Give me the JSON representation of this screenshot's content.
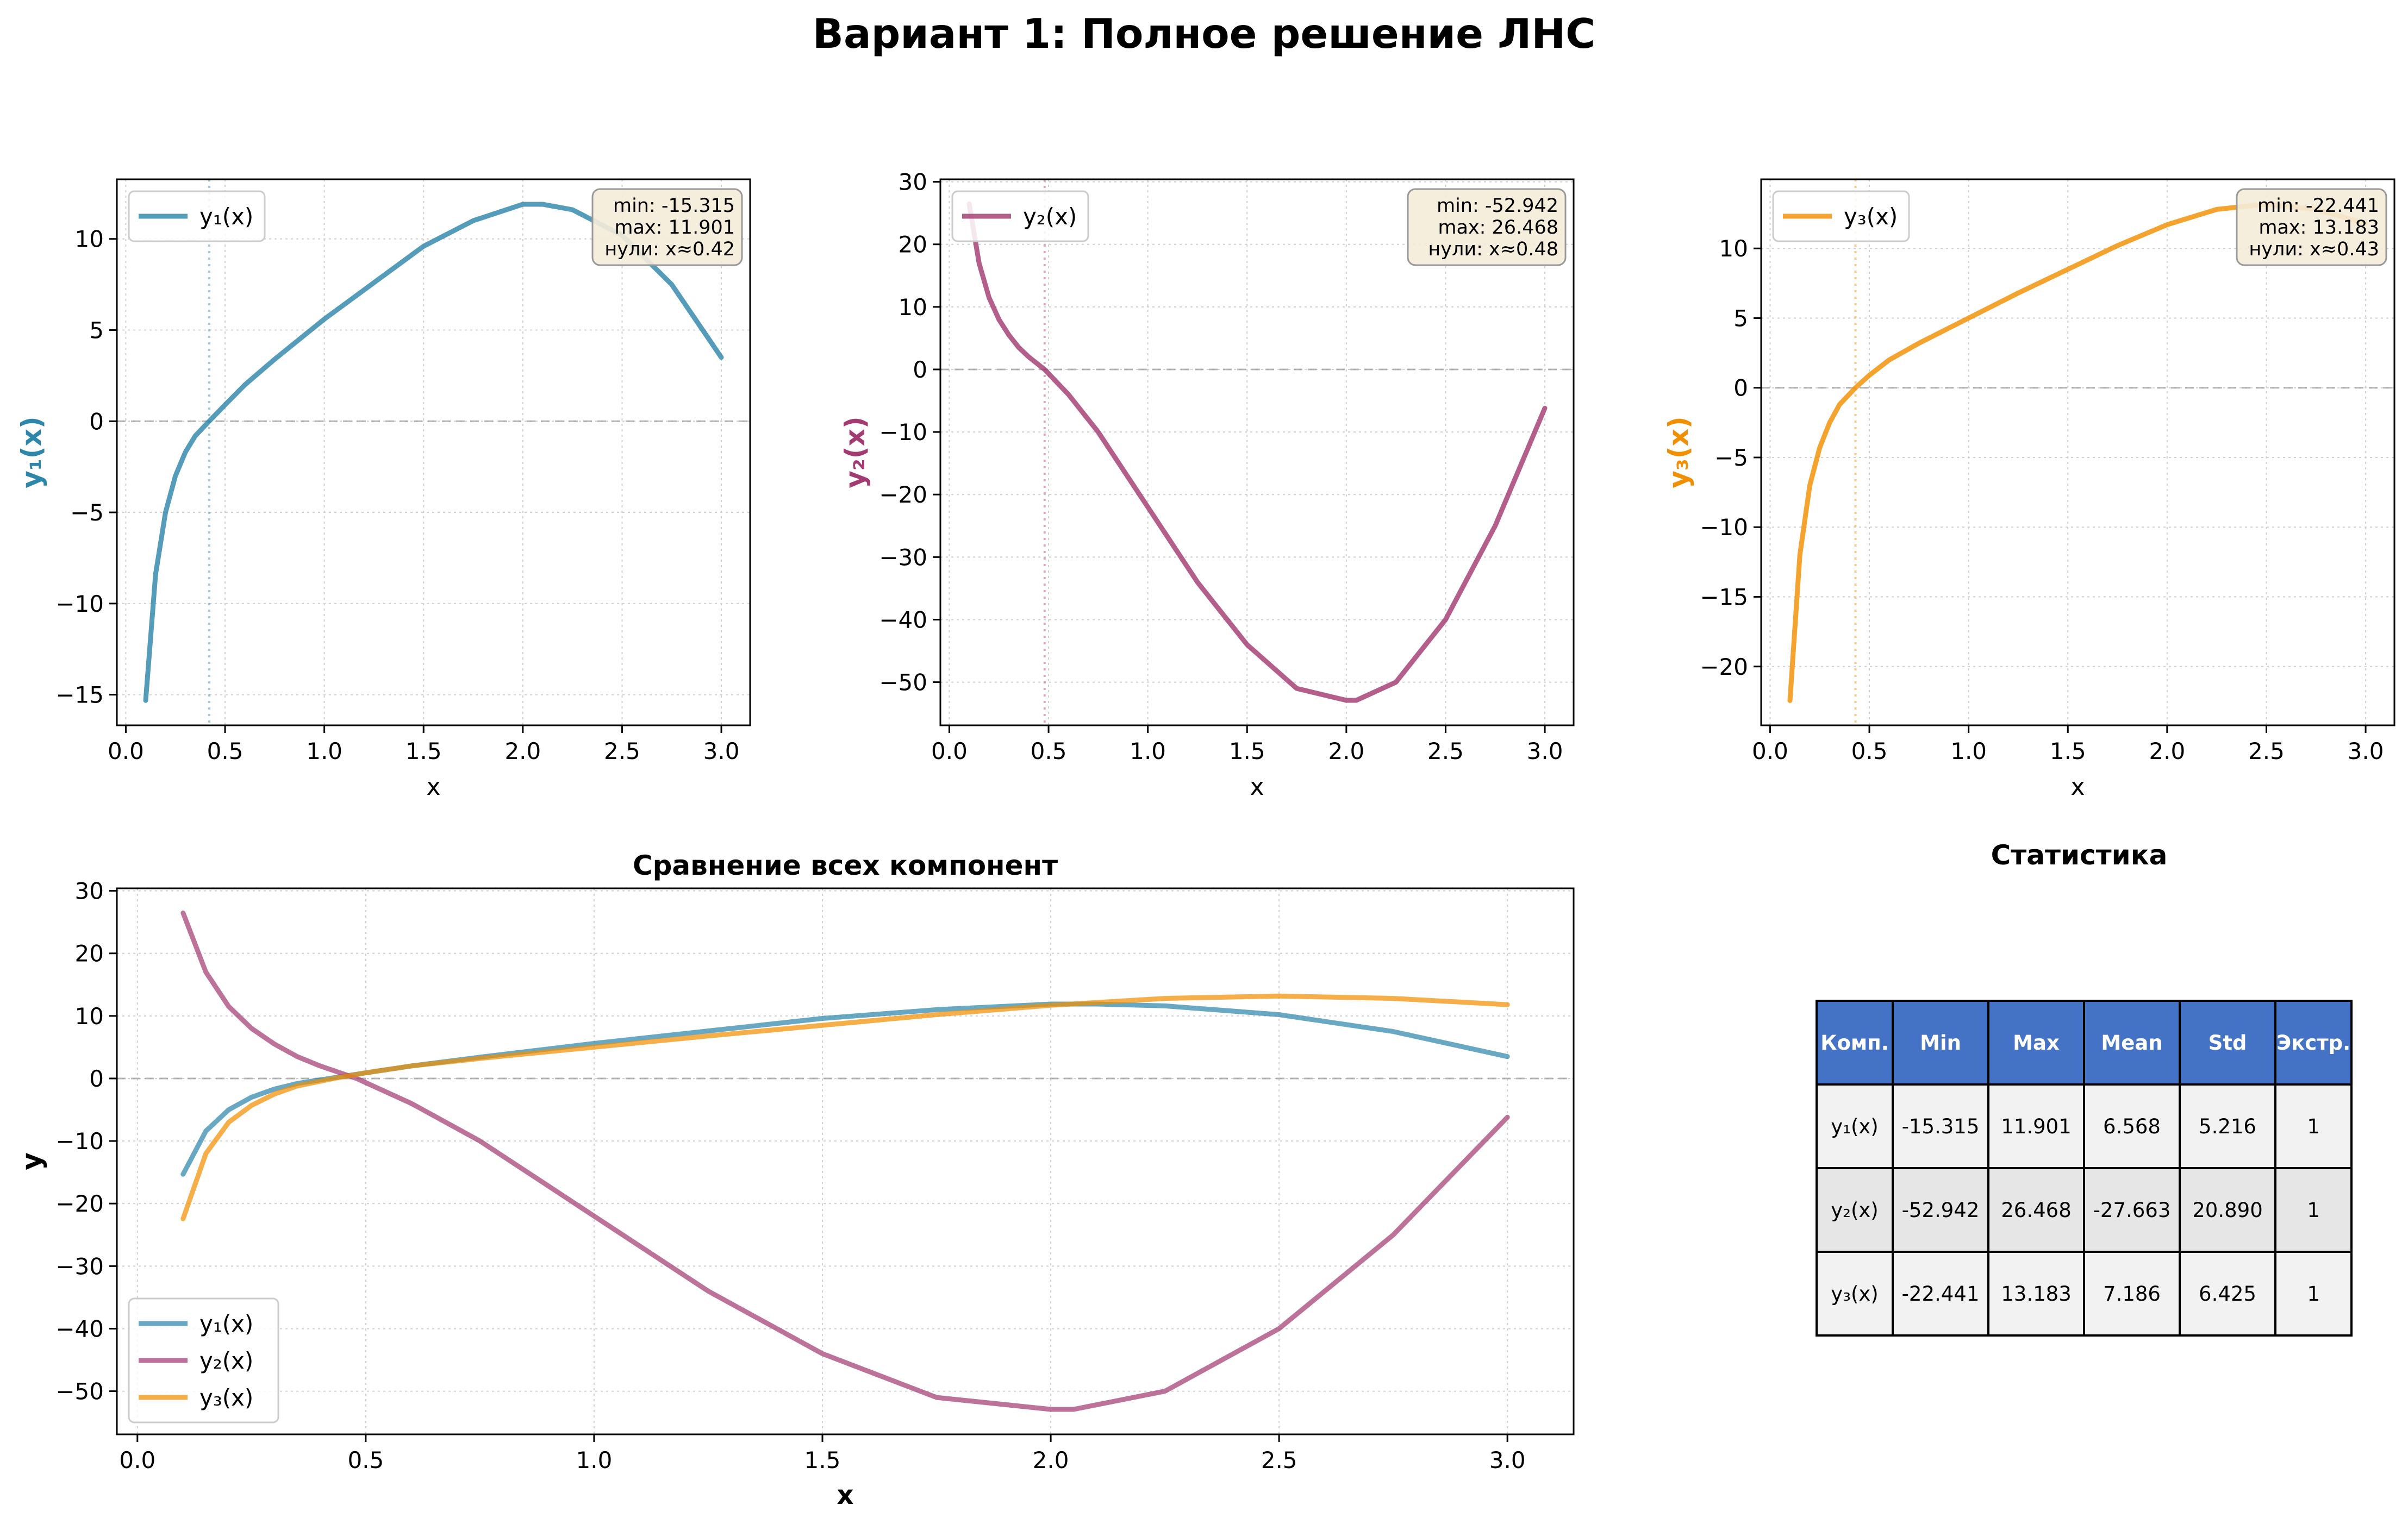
{
  "suptitle": "Вариант 1: Полное решение ЛНС",
  "chart_data": [
    {
      "type": "line",
      "xlabel": "x",
      "ylabel": "y₁(x)",
      "xlim": [
        -0.045,
        3.145
      ],
      "ylim": [
        -16.68,
        13.27
      ],
      "xticks": [
        0.0,
        0.5,
        1.0,
        1.5,
        2.0,
        2.5,
        3.0
      ],
      "yticks": [
        -15,
        -10,
        -5,
        0,
        5,
        10
      ],
      "grid": true,
      "legend": "top-left",
      "zero_crossing": 0.42,
      "annotation": [
        "min: -15.315",
        "max: 11.901",
        "нули: x≈0.42"
      ],
      "series": [
        {
          "name": "y₁(x)",
          "color": "#2E86AB",
          "x": [
            0.1,
            0.15,
            0.2,
            0.25,
            0.3,
            0.35,
            0.42,
            0.5,
            0.6,
            0.75,
            1.0,
            1.25,
            1.5,
            1.75,
            2.0,
            2.1,
            2.25,
            2.5,
            2.75,
            3.0
          ],
          "y": [
            -15.315,
            -8.4,
            -5.0,
            -3.0,
            -1.7,
            -0.8,
            0.0,
            0.9,
            2.0,
            3.4,
            5.6,
            7.6,
            9.6,
            11.0,
            11.9,
            11.9,
            11.6,
            10.2,
            7.5,
            3.5
          ]
        }
      ]
    },
    {
      "type": "line",
      "xlabel": "x",
      "ylabel": "y₂(x)",
      "xlim": [
        -0.045,
        3.145
      ],
      "ylim": [
        -56.9,
        30.4
      ],
      "xticks": [
        0.0,
        0.5,
        1.0,
        1.5,
        2.0,
        2.5,
        3.0
      ],
      "yticks": [
        -50,
        -40,
        -30,
        -20,
        -10,
        0,
        10,
        20,
        30
      ],
      "grid": true,
      "legend": "top-left",
      "zero_crossing": 0.48,
      "annotation": [
        "min: -52.942",
        "max: 26.468",
        "нули: x≈0.48"
      ],
      "series": [
        {
          "name": "y₂(x)",
          "color": "#A23B72",
          "x": [
            0.1,
            0.15,
            0.2,
            0.25,
            0.3,
            0.35,
            0.4,
            0.48,
            0.6,
            0.75,
            1.0,
            1.25,
            1.5,
            1.75,
            2.0,
            2.05,
            2.25,
            2.5,
            2.75,
            3.0
          ],
          "y": [
            26.468,
            17.0,
            11.5,
            8.0,
            5.5,
            3.5,
            2.0,
            0.0,
            -4.0,
            -10.0,
            -22.0,
            -34.0,
            -44.0,
            -51.0,
            -52.9,
            -52.9,
            -50.0,
            -40.0,
            -25.0,
            -6.2
          ]
        }
      ]
    },
    {
      "type": "line",
      "xlabel": "x",
      "ylabel": "y₃(x)",
      "xlim": [
        -0.045,
        3.145
      ],
      "ylim": [
        -24.22,
        14.96
      ],
      "xticks": [
        0.0,
        0.5,
        1.0,
        1.5,
        2.0,
        2.5,
        3.0
      ],
      "yticks": [
        -20,
        -15,
        -10,
        -5,
        0,
        5,
        10
      ],
      "grid": true,
      "legend": "top-left",
      "zero_crossing": 0.43,
      "annotation": [
        "min: -22.441",
        "max: 13.183",
        "нули: x≈0.43"
      ],
      "series": [
        {
          "name": "y₃(x)",
          "color": "#F18F01",
          "x": [
            0.1,
            0.15,
            0.2,
            0.25,
            0.3,
            0.35,
            0.43,
            0.5,
            0.6,
            0.75,
            1.0,
            1.25,
            1.5,
            1.75,
            2.0,
            2.25,
            2.5,
            2.75,
            3.0
          ],
          "y": [
            -22.441,
            -12.0,
            -7.0,
            -4.3,
            -2.5,
            -1.2,
            0.0,
            0.9,
            2.0,
            3.2,
            5.0,
            6.8,
            8.5,
            10.2,
            11.7,
            12.8,
            13.18,
            12.8,
            11.8
          ]
        }
      ]
    },
    {
      "type": "line",
      "title": "Сравнение всех компонент",
      "xlabel": "x",
      "ylabel": "y",
      "xlim": [
        -0.045,
        3.145
      ],
      "ylim": [
        -56.9,
        30.4
      ],
      "xticks": [
        0.0,
        0.5,
        1.0,
        1.5,
        2.0,
        2.5,
        3.0
      ],
      "yticks": [
        -50,
        -40,
        -30,
        -20,
        -10,
        0,
        10,
        20,
        30
      ],
      "grid": true,
      "legend": "bottom-left",
      "series": [
        {
          "name": "y₁(x)",
          "color": "#2E86AB",
          "x": [
            0.1,
            0.15,
            0.2,
            0.25,
            0.3,
            0.35,
            0.42,
            0.5,
            0.6,
            0.75,
            1.0,
            1.25,
            1.5,
            1.75,
            2.0,
            2.1,
            2.25,
            2.5,
            2.75,
            3.0
          ],
          "y": [
            -15.315,
            -8.4,
            -5.0,
            -3.0,
            -1.7,
            -0.8,
            0.0,
            0.9,
            2.0,
            3.4,
            5.6,
            7.6,
            9.6,
            11.0,
            11.9,
            11.9,
            11.6,
            10.2,
            7.5,
            3.5
          ]
        },
        {
          "name": "y₂(x)",
          "color": "#A23B72",
          "x": [
            0.1,
            0.15,
            0.2,
            0.25,
            0.3,
            0.35,
            0.4,
            0.48,
            0.6,
            0.75,
            1.0,
            1.25,
            1.5,
            1.75,
            2.0,
            2.05,
            2.25,
            2.5,
            2.75,
            3.0
          ],
          "y": [
            26.468,
            17.0,
            11.5,
            8.0,
            5.5,
            3.5,
            2.0,
            0.0,
            -4.0,
            -10.0,
            -22.0,
            -34.0,
            -44.0,
            -51.0,
            -52.9,
            -52.9,
            -50.0,
            -40.0,
            -25.0,
            -6.2
          ]
        },
        {
          "name": "y₃(x)",
          "color": "#F18F01",
          "x": [
            0.1,
            0.15,
            0.2,
            0.25,
            0.3,
            0.35,
            0.43,
            0.5,
            0.6,
            0.75,
            1.0,
            1.25,
            1.5,
            1.75,
            2.0,
            2.25,
            2.5,
            2.75,
            3.0
          ],
          "y": [
            -22.441,
            -12.0,
            -7.0,
            -4.3,
            -2.5,
            -1.2,
            0.0,
            0.9,
            2.0,
            3.2,
            5.0,
            6.8,
            8.5,
            10.2,
            11.7,
            12.8,
            13.18,
            12.8,
            11.8
          ]
        }
      ]
    },
    {
      "type": "table",
      "title": "Статистика",
      "columns": [
        "Комп.",
        "Min",
        "Max",
        "Mean",
        "Std",
        "Экстр."
      ],
      "rows": [
        [
          "y₁(x)",
          "-15.315",
          "11.901",
          "6.568",
          "5.216",
          "1"
        ],
        [
          "y₂(x)",
          "-52.942",
          "26.468",
          "-27.663",
          "20.890",
          "1"
        ],
        [
          "y₃(x)",
          "-22.441",
          "13.183",
          "7.186",
          "6.425",
          "1"
        ]
      ],
      "header_color": "#4472C4"
    }
  ]
}
